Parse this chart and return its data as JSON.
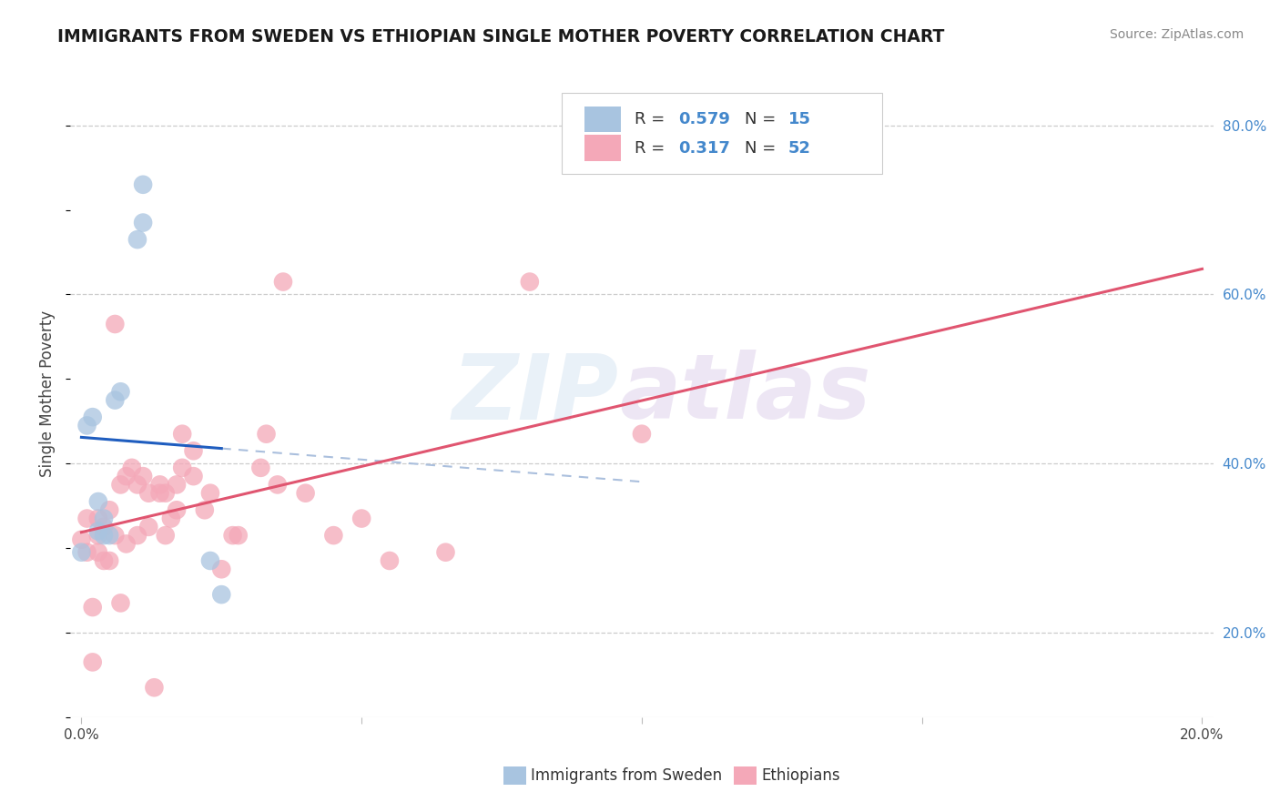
{
  "title": "IMMIGRANTS FROM SWEDEN VS ETHIOPIAN SINGLE MOTHER POVERTY CORRELATION CHART",
  "source": "Source: ZipAtlas.com",
  "ylabel": "Single Mother Poverty",
  "xlim": [
    -0.002,
    0.202
  ],
  "ylim": [
    0.1,
    0.865
  ],
  "x_ticks": [
    0.0,
    0.05,
    0.1,
    0.15,
    0.2
  ],
  "y_ticks_right": [
    0.2,
    0.4,
    0.6,
    0.8
  ],
  "sweden_R": "0.579",
  "sweden_N": "15",
  "ethiopia_R": "0.317",
  "ethiopia_N": "52",
  "sweden_color": "#a8c4e0",
  "ethiopia_color": "#f4a8b8",
  "sweden_line_color": "#1f5dbf",
  "ethiopia_line_color": "#e05570",
  "sweden_scatter_x": [
    0.0,
    0.001,
    0.002,
    0.003,
    0.003,
    0.004,
    0.004,
    0.005,
    0.006,
    0.007,
    0.01,
    0.011,
    0.011,
    0.023,
    0.025
  ],
  "sweden_scatter_y": [
    0.295,
    0.445,
    0.455,
    0.32,
    0.355,
    0.315,
    0.335,
    0.315,
    0.475,
    0.485,
    0.665,
    0.685,
    0.73,
    0.285,
    0.245
  ],
  "ethiopia_scatter_x": [
    0.0,
    0.001,
    0.001,
    0.002,
    0.002,
    0.003,
    0.003,
    0.003,
    0.004,
    0.004,
    0.005,
    0.005,
    0.006,
    0.006,
    0.007,
    0.007,
    0.008,
    0.008,
    0.009,
    0.01,
    0.01,
    0.011,
    0.012,
    0.012,
    0.013,
    0.014,
    0.014,
    0.015,
    0.015,
    0.016,
    0.017,
    0.017,
    0.018,
    0.018,
    0.02,
    0.02,
    0.022,
    0.023,
    0.025,
    0.027,
    0.028,
    0.032,
    0.033,
    0.035,
    0.036,
    0.04,
    0.045,
    0.05,
    0.055,
    0.065,
    0.08,
    0.1
  ],
  "ethiopia_scatter_y": [
    0.31,
    0.335,
    0.295,
    0.165,
    0.23,
    0.295,
    0.315,
    0.335,
    0.325,
    0.285,
    0.345,
    0.285,
    0.565,
    0.315,
    0.235,
    0.375,
    0.305,
    0.385,
    0.395,
    0.315,
    0.375,
    0.385,
    0.365,
    0.325,
    0.135,
    0.365,
    0.375,
    0.315,
    0.365,
    0.335,
    0.345,
    0.375,
    0.395,
    0.435,
    0.385,
    0.415,
    0.345,
    0.365,
    0.275,
    0.315,
    0.315,
    0.395,
    0.435,
    0.375,
    0.615,
    0.365,
    0.315,
    0.335,
    0.285,
    0.295,
    0.615,
    0.435
  ],
  "watermark_zip": "ZIP",
  "watermark_atlas": "atlas",
  "grid_color": "#cccccc",
  "grid_style": "--",
  "background_color": "#ffffff",
  "title_color": "#1a1a1a",
  "source_color": "#888888",
  "ylabel_color": "#444444",
  "right_tick_color": "#4488cc",
  "bottom_tick_label_color": "#444444",
  "legend_border_color": "#cccccc",
  "legend_sweden_sq_color": "#a8c4e0",
  "legend_ethiopia_sq_color": "#f4a8b8",
  "legend_text_color": "#333333",
  "legend_value_color": "#4488cc"
}
